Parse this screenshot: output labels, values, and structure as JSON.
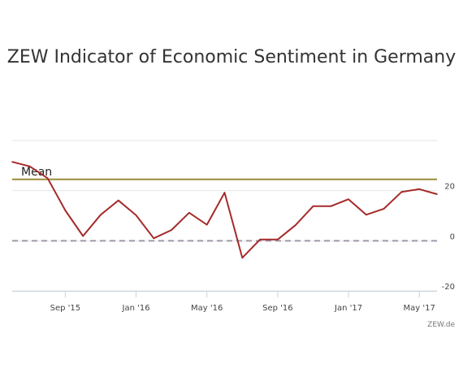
{
  "chart_data": {
    "type": "line",
    "title": "ZEW Indicator of Economic Sentiment in Germany",
    "x": [
      "2015-06",
      "2015-07",
      "2015-08",
      "2015-09",
      "2015-10",
      "2015-11",
      "2015-12",
      "2016-01",
      "2016-02",
      "2016-03",
      "2016-04",
      "2016-05",
      "2016-06",
      "2016-07",
      "2016-08",
      "2016-09",
      "2016-10",
      "2016-11",
      "2016-12",
      "2017-01",
      "2017-02",
      "2017-03",
      "2017-04",
      "2017-05",
      "2017-06"
    ],
    "x_tick_labels": [
      "Sep '15",
      "Jan '16",
      "May '16",
      "Sep '16",
      "Jan '17",
      "May '17"
    ],
    "x_tick_values": [
      "2015-09",
      "2016-01",
      "2016-05",
      "2016-09",
      "2017-01",
      "2017-05"
    ],
    "series": [
      {
        "values": [
          31.5,
          29.7,
          25.0,
          12.1,
          1.9,
          10.4,
          16.1,
          10.2,
          1.0,
          4.3,
          11.2,
          6.4,
          19.2,
          -6.8,
          0.5,
          0.5,
          6.2,
          13.8,
          13.8,
          16.6,
          10.4,
          12.8,
          19.5,
          20.6,
          18.6
        ],
        "color": "#a52a2a"
      }
    ],
    "reference_lines": [
      {
        "label": "Mean",
        "value": 24.5,
        "color": "#9b8b3a",
        "style": "solid"
      },
      {
        "label": "",
        "value": 0,
        "color": "#a098a8",
        "style": "dashed"
      }
    ],
    "y_tick_labels": [
      "20",
      "0",
      "-20"
    ],
    "y_tick_values": [
      20,
      0,
      -20
    ],
    "ylim": [
      -20,
      40
    ],
    "xlabel": "",
    "ylabel": "",
    "grid": true,
    "y_axis_side": "right",
    "credit": "ZEW.de"
  }
}
